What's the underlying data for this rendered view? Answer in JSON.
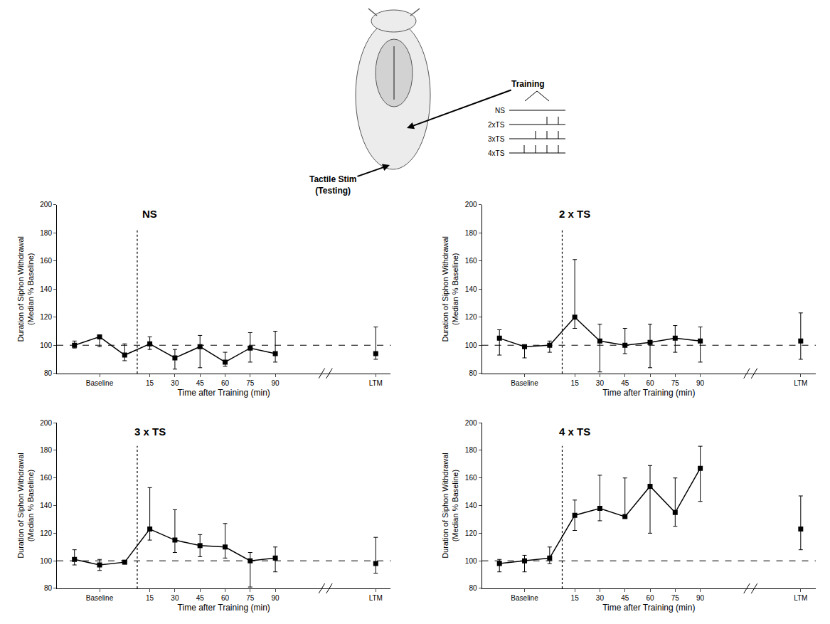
{
  "chart_data": [
    {
      "type": "line",
      "title": "NS",
      "categories": [
        null,
        "Baseline",
        null,
        "15",
        "30",
        "45",
        "60",
        "75",
        "90",
        null,
        null,
        null,
        "LTM"
      ],
      "values": [
        100,
        106,
        93,
        101,
        91,
        99,
        88,
        98,
        94,
        null,
        null,
        null,
        94
      ],
      "error_plus": [
        3,
        1,
        8,
        5,
        6,
        8,
        7,
        11,
        16,
        null,
        null,
        null,
        19
      ],
      "error_minus": [
        2,
        7,
        4,
        4,
        8,
        15,
        3,
        10,
        6,
        null,
        null,
        null,
        4
      ],
      "reference_line": 100,
      "x_label": "Time after Training (min)",
      "y_label": "Duration of Siphon Withdrawal (Median % Baseline)",
      "ylim": [
        80,
        200
      ],
      "yticks": [
        80,
        100,
        120,
        140,
        160,
        180,
        200
      ],
      "color": "#000000",
      "marker": "square",
      "line_style": "solid",
      "grid": false
    },
    {
      "type": "line",
      "title": "2 x TS",
      "categories": [
        null,
        "Baseline",
        null,
        "15",
        "30",
        "45",
        "60",
        "75",
        "90",
        null,
        null,
        null,
        "LTM"
      ],
      "values": [
        105,
        99,
        100,
        120,
        103,
        100,
        102,
        105,
        103,
        null,
        null,
        null,
        103
      ],
      "error_plus": [
        6,
        1,
        3,
        41,
        12,
        12,
        13,
        9,
        10,
        null,
        null,
        null,
        20
      ],
      "error_minus": [
        12,
        8,
        5,
        8,
        22,
        6,
        18,
        10,
        15,
        null,
        null,
        null,
        13
      ],
      "reference_line": 100,
      "x_label": "Time after Training (min)",
      "y_label": "Duration of Siphon Withdrawal (Median % Baseline)",
      "ylim": [
        80,
        200
      ],
      "yticks": [
        80,
        100,
        120,
        140,
        160,
        180,
        200
      ],
      "color": "#000000",
      "marker": "square",
      "line_style": "solid",
      "grid": false
    },
    {
      "type": "line",
      "title": "3 x TS",
      "categories": [
        null,
        "Baseline",
        null,
        "15",
        "30",
        "45",
        "60",
        "75",
        "90",
        null,
        null,
        null,
        "LTM"
      ],
      "values": [
        101,
        97,
        99,
        123,
        115,
        111,
        110,
        100,
        102,
        null,
        null,
        null,
        98
      ],
      "error_plus": [
        7,
        4,
        1,
        30,
        22,
        8,
        17,
        6,
        8,
        null,
        null,
        null,
        19
      ],
      "error_minus": [
        4,
        4,
        0,
        8,
        9,
        8,
        8,
        19,
        10,
        null,
        null,
        null,
        7
      ],
      "reference_line": 100,
      "x_label": "Time after Training (min)",
      "y_label": "Duration of Siphon Withdrawal (Median % Baseline)",
      "ylim": [
        80,
        200
      ],
      "yticks": [
        80,
        100,
        120,
        140,
        160,
        180,
        200
      ],
      "color": "#000000",
      "marker": "square",
      "line_style": "solid",
      "grid": false
    },
    {
      "type": "line",
      "title": "4 x TS",
      "categories": [
        null,
        "Baseline",
        null,
        "15",
        "30",
        "45",
        "60",
        "75",
        "90",
        null,
        null,
        null,
        "LTM"
      ],
      "values": [
        98,
        100,
        102,
        133,
        138,
        132,
        154,
        135,
        167,
        null,
        null,
        null,
        123
      ],
      "error_plus": [
        3,
        4,
        8,
        11,
        24,
        28,
        15,
        25,
        16,
        null,
        null,
        null,
        24
      ],
      "error_minus": [
        6,
        8,
        4,
        11,
        9,
        1,
        34,
        10,
        24,
        null,
        null,
        null,
        15
      ],
      "reference_line": 100,
      "x_label": "Time after Training (min)",
      "y_label": "Duration of Siphon Withdrawal (Median % Baseline)",
      "ylim": [
        80,
        200
      ],
      "yticks": [
        80,
        100,
        120,
        140,
        160,
        180,
        200
      ],
      "color": "#000000",
      "marker": "square",
      "line_style": "solid",
      "grid": false
    }
  ],
  "diagram": {
    "training_label": "Training",
    "testing_label": "Tactile Stim (Testing)",
    "protocols": [
      {
        "label": "NS",
        "stimuli": 0
      },
      {
        "label": "2xTS",
        "stimuli": 2
      },
      {
        "label": "3xTS",
        "stimuli": 3
      },
      {
        "label": "4xTS",
        "stimuli": 4
      }
    ]
  }
}
